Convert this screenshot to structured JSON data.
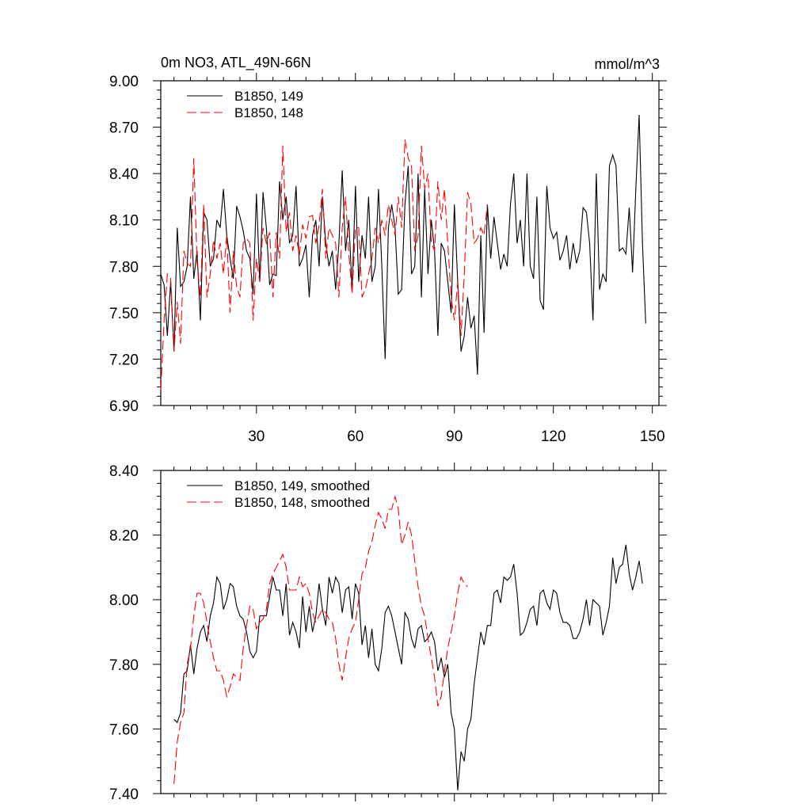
{
  "chart_data": [
    {
      "type": "line",
      "title_left": "0m NO3, ATL_49N-66N",
      "title_right": "mmol/m^3",
      "xlim": [
        1,
        152
      ],
      "ylim": [
        6.9,
        9.0
      ],
      "yticks": [
        6.9,
        7.2,
        7.5,
        7.8,
        8.1,
        8.4,
        8.7,
        9.0
      ],
      "ytick_labels": [
        "6.90",
        "7.20",
        "7.50",
        "7.80",
        "8.10",
        "8.40",
        "8.70",
        "9.00"
      ],
      "xticks": [
        30,
        60,
        90,
        120,
        150
      ],
      "xtick_labels": [
        "30",
        "60",
        "90",
        "120",
        "150"
      ],
      "legend_position": "top-left",
      "series": [
        {
          "name": "B1850, 149",
          "color": "#000000",
          "dash": "solid",
          "x_start": 1,
          "values": [
            7.75,
            7.68,
            7.35,
            7.7,
            7.25,
            8.05,
            7.67,
            7.7,
            7.8,
            8.25,
            7.72,
            7.9,
            7.45,
            8.15,
            8.1,
            7.8,
            7.85,
            8.1,
            8.05,
            8.3,
            8.0,
            7.85,
            7.72,
            8.19,
            8.12,
            8.03,
            7.9,
            7.85,
            7.62,
            8.27,
            7.7,
            8.28,
            8.05,
            7.68,
            7.75,
            7.74,
            8.35,
            8.1,
            8.25,
            7.95,
            8.0,
            8.32,
            7.8,
            7.85,
            7.94,
            7.6,
            8.0,
            8.1,
            7.8,
            8.25,
            7.95,
            7.8,
            7.9,
            7.65,
            7.95,
            8.42,
            7.9,
            8.1,
            7.65,
            8.32,
            7.7,
            8.0,
            7.85,
            8.25,
            7.7,
            7.8,
            8.3,
            7.8,
            7.2,
            8.05,
            8.2,
            8.05,
            7.62,
            7.65,
            8.2,
            8.45,
            7.75,
            7.8,
            8.4,
            7.6,
            8.3,
            7.75,
            8.1,
            7.9,
            7.35,
            7.95,
            7.9,
            7.7,
            7.5,
            8.2,
            7.7,
            7.25,
            7.35,
            7.6,
            7.4,
            7.48,
            7.1,
            8.0,
            7.37,
            8.2,
            7.85,
            8.12,
            7.95,
            7.78,
            7.88,
            7.8,
            8.2,
            8.4,
            7.95,
            8.1,
            7.8,
            8.4,
            7.8,
            7.72,
            8.25,
            7.58,
            7.52,
            8.32,
            8.05,
            7.98,
            8.02,
            7.84,
            7.9,
            8.0,
            7.78,
            7.95,
            7.82,
            7.9,
            8.18,
            8.15,
            7.95,
            7.45,
            8.4,
            7.65,
            7.75,
            7.7,
            8.45,
            8.52,
            8.45,
            7.9,
            7.92,
            7.88,
            8.18,
            7.76,
            8.3,
            8.78,
            7.95,
            7.43
          ]
        },
        {
          "name": "B1850, 148",
          "color": "#ff0000",
          "dash": "dashed",
          "x_start": 1,
          "values": [
            7.0,
            7.45,
            7.75,
            7.72,
            7.25,
            7.57,
            7.3,
            7.9,
            7.82,
            7.8,
            8.5,
            7.83,
            7.6,
            8.2,
            7.6,
            7.75,
            7.97,
            7.85,
            7.95,
            7.75,
            8.0,
            7.5,
            7.9,
            7.67,
            7.6,
            7.95,
            7.98,
            7.95,
            7.45,
            7.85,
            7.7,
            8.05,
            7.95,
            8.02,
            7.6,
            8.02,
            7.85,
            8.58,
            8.02,
            8.15,
            7.9,
            8.0,
            7.87,
            8.07,
            7.98,
            8.12,
            8.13,
            7.95,
            8.07,
            8.3,
            7.85,
            8.05,
            8.0,
            7.95,
            7.6,
            8.05,
            8.25,
            7.88,
            7.62,
            8.05,
            8.05,
            7.6,
            7.65,
            7.75,
            7.85,
            8.05,
            7.95,
            8.1,
            8.0,
            8.2,
            8.1,
            8.0,
            8.25,
            8.05,
            8.62,
            8.5,
            8.45,
            7.9,
            8.0,
            8.58,
            8.3,
            8.4,
            7.95,
            7.9,
            8.35,
            8.1,
            8.3,
            7.95,
            7.6,
            7.45,
            7.7,
            7.35,
            7.75,
            8.28,
            8.2,
            7.95,
            7.98,
            8.05,
            8.0,
            8.2
          ]
        }
      ]
    },
    {
      "type": "line",
      "xlim": [
        1,
        152
      ],
      "ylim": [
        7.4,
        8.4
      ],
      "yticks": [
        7.4,
        7.6,
        7.8,
        8.0,
        8.2,
        8.4
      ],
      "ytick_labels": [
        "7.40",
        "7.60",
        "7.80",
        "8.00",
        "8.20",
        "8.40"
      ],
      "xticks": [
        30,
        60,
        90,
        120,
        150
      ],
      "legend_position": "top-left",
      "series": [
        {
          "name": "B1850, 149, smoothed",
          "color": "#000000",
          "dash": "solid",
          "x_start": 5,
          "values": [
            7.63,
            7.62,
            7.65,
            7.77,
            7.78,
            7.86,
            7.77,
            7.85,
            7.9,
            7.92,
            7.87,
            7.95,
            7.99,
            8.07,
            8.05,
            7.97,
            8.0,
            8.05,
            8.04,
            7.98,
            7.95,
            7.94,
            7.9,
            7.84,
            7.82,
            7.84,
            7.95,
            7.95,
            7.95,
            8.01,
            8.07,
            8.03,
            8.03,
            7.95,
            8.05,
            7.89,
            7.93,
            7.9,
            7.85,
            8.01,
            7.9,
            7.98,
            7.9,
            7.95,
            8.05,
            7.97,
            7.92,
            8.07,
            8.02,
            8.07,
            8.05,
            7.96,
            8.03,
            8.04,
            7.94,
            8.05,
            8.02,
            7.86,
            7.92,
            7.82,
            7.91,
            7.8,
            7.78,
            7.85,
            7.96,
            7.98,
            7.95,
            7.9,
            7.85,
            7.8,
            7.96,
            7.94,
            7.88,
            7.85,
            7.91,
            7.92,
            7.87,
            7.88,
            7.9,
            7.87,
            7.78,
            7.82,
            7.76,
            7.8,
            7.65,
            7.6,
            7.41,
            7.53,
            7.5,
            7.6,
            7.63,
            7.74,
            7.82,
            7.9,
            7.86,
            7.92,
            7.92,
            8.02,
            8.03,
            7.99,
            8.07,
            8.06,
            8.07,
            8.11,
            8.02,
            7.89,
            7.9,
            7.93,
            7.97,
            7.98,
            7.92,
            8.02,
            8.03,
            7.99,
            7.97,
            8.03,
            8.02,
            7.96,
            7.93,
            7.93,
            7.92,
            7.88,
            7.88,
            7.9,
            7.94,
            8.0,
            7.92,
            8.0,
            7.99,
            7.98,
            7.89,
            7.93,
            7.98,
            8.13,
            8.05,
            8.1,
            8.11,
            8.17,
            8.08,
            8.03,
            8.07,
            8.12,
            8.05
          ]
        },
        {
          "name": "B1850, 148, smoothed",
          "color": "#ff0000",
          "dash": "dashed",
          "x_start": 5,
          "values": [
            7.43,
            7.56,
            7.62,
            7.65,
            7.8,
            7.85,
            7.95,
            8.02,
            8.02,
            7.99,
            7.93,
            7.87,
            7.82,
            7.78,
            7.78,
            7.75,
            7.7,
            7.73,
            7.77,
            7.76,
            7.75,
            7.85,
            7.92,
            7.98,
            7.97,
            7.91,
            7.93,
            7.94,
            7.97,
            8.05,
            8.08,
            8.1,
            8.12,
            8.14,
            8.1,
            8.03,
            8.03,
            8.03,
            8.07,
            8.04,
            8.05,
            8.02,
            7.96,
            7.93,
            7.95,
            7.97,
            7.96,
            7.94,
            7.93,
            7.88,
            7.8,
            7.75,
            7.82,
            7.88,
            7.91,
            7.93,
            8.0,
            8.08,
            8.1,
            8.15,
            8.18,
            8.23,
            8.27,
            8.25,
            8.22,
            8.28,
            8.28,
            8.32,
            8.28,
            8.17,
            8.2,
            8.24,
            8.2,
            8.12,
            8.04,
            7.98,
            7.95,
            7.88,
            7.82,
            7.76,
            7.67,
            7.7,
            7.78,
            7.85,
            7.9,
            7.95,
            8.02,
            8.07,
            8.05,
            8.04
          ]
        }
      ]
    }
  ]
}
